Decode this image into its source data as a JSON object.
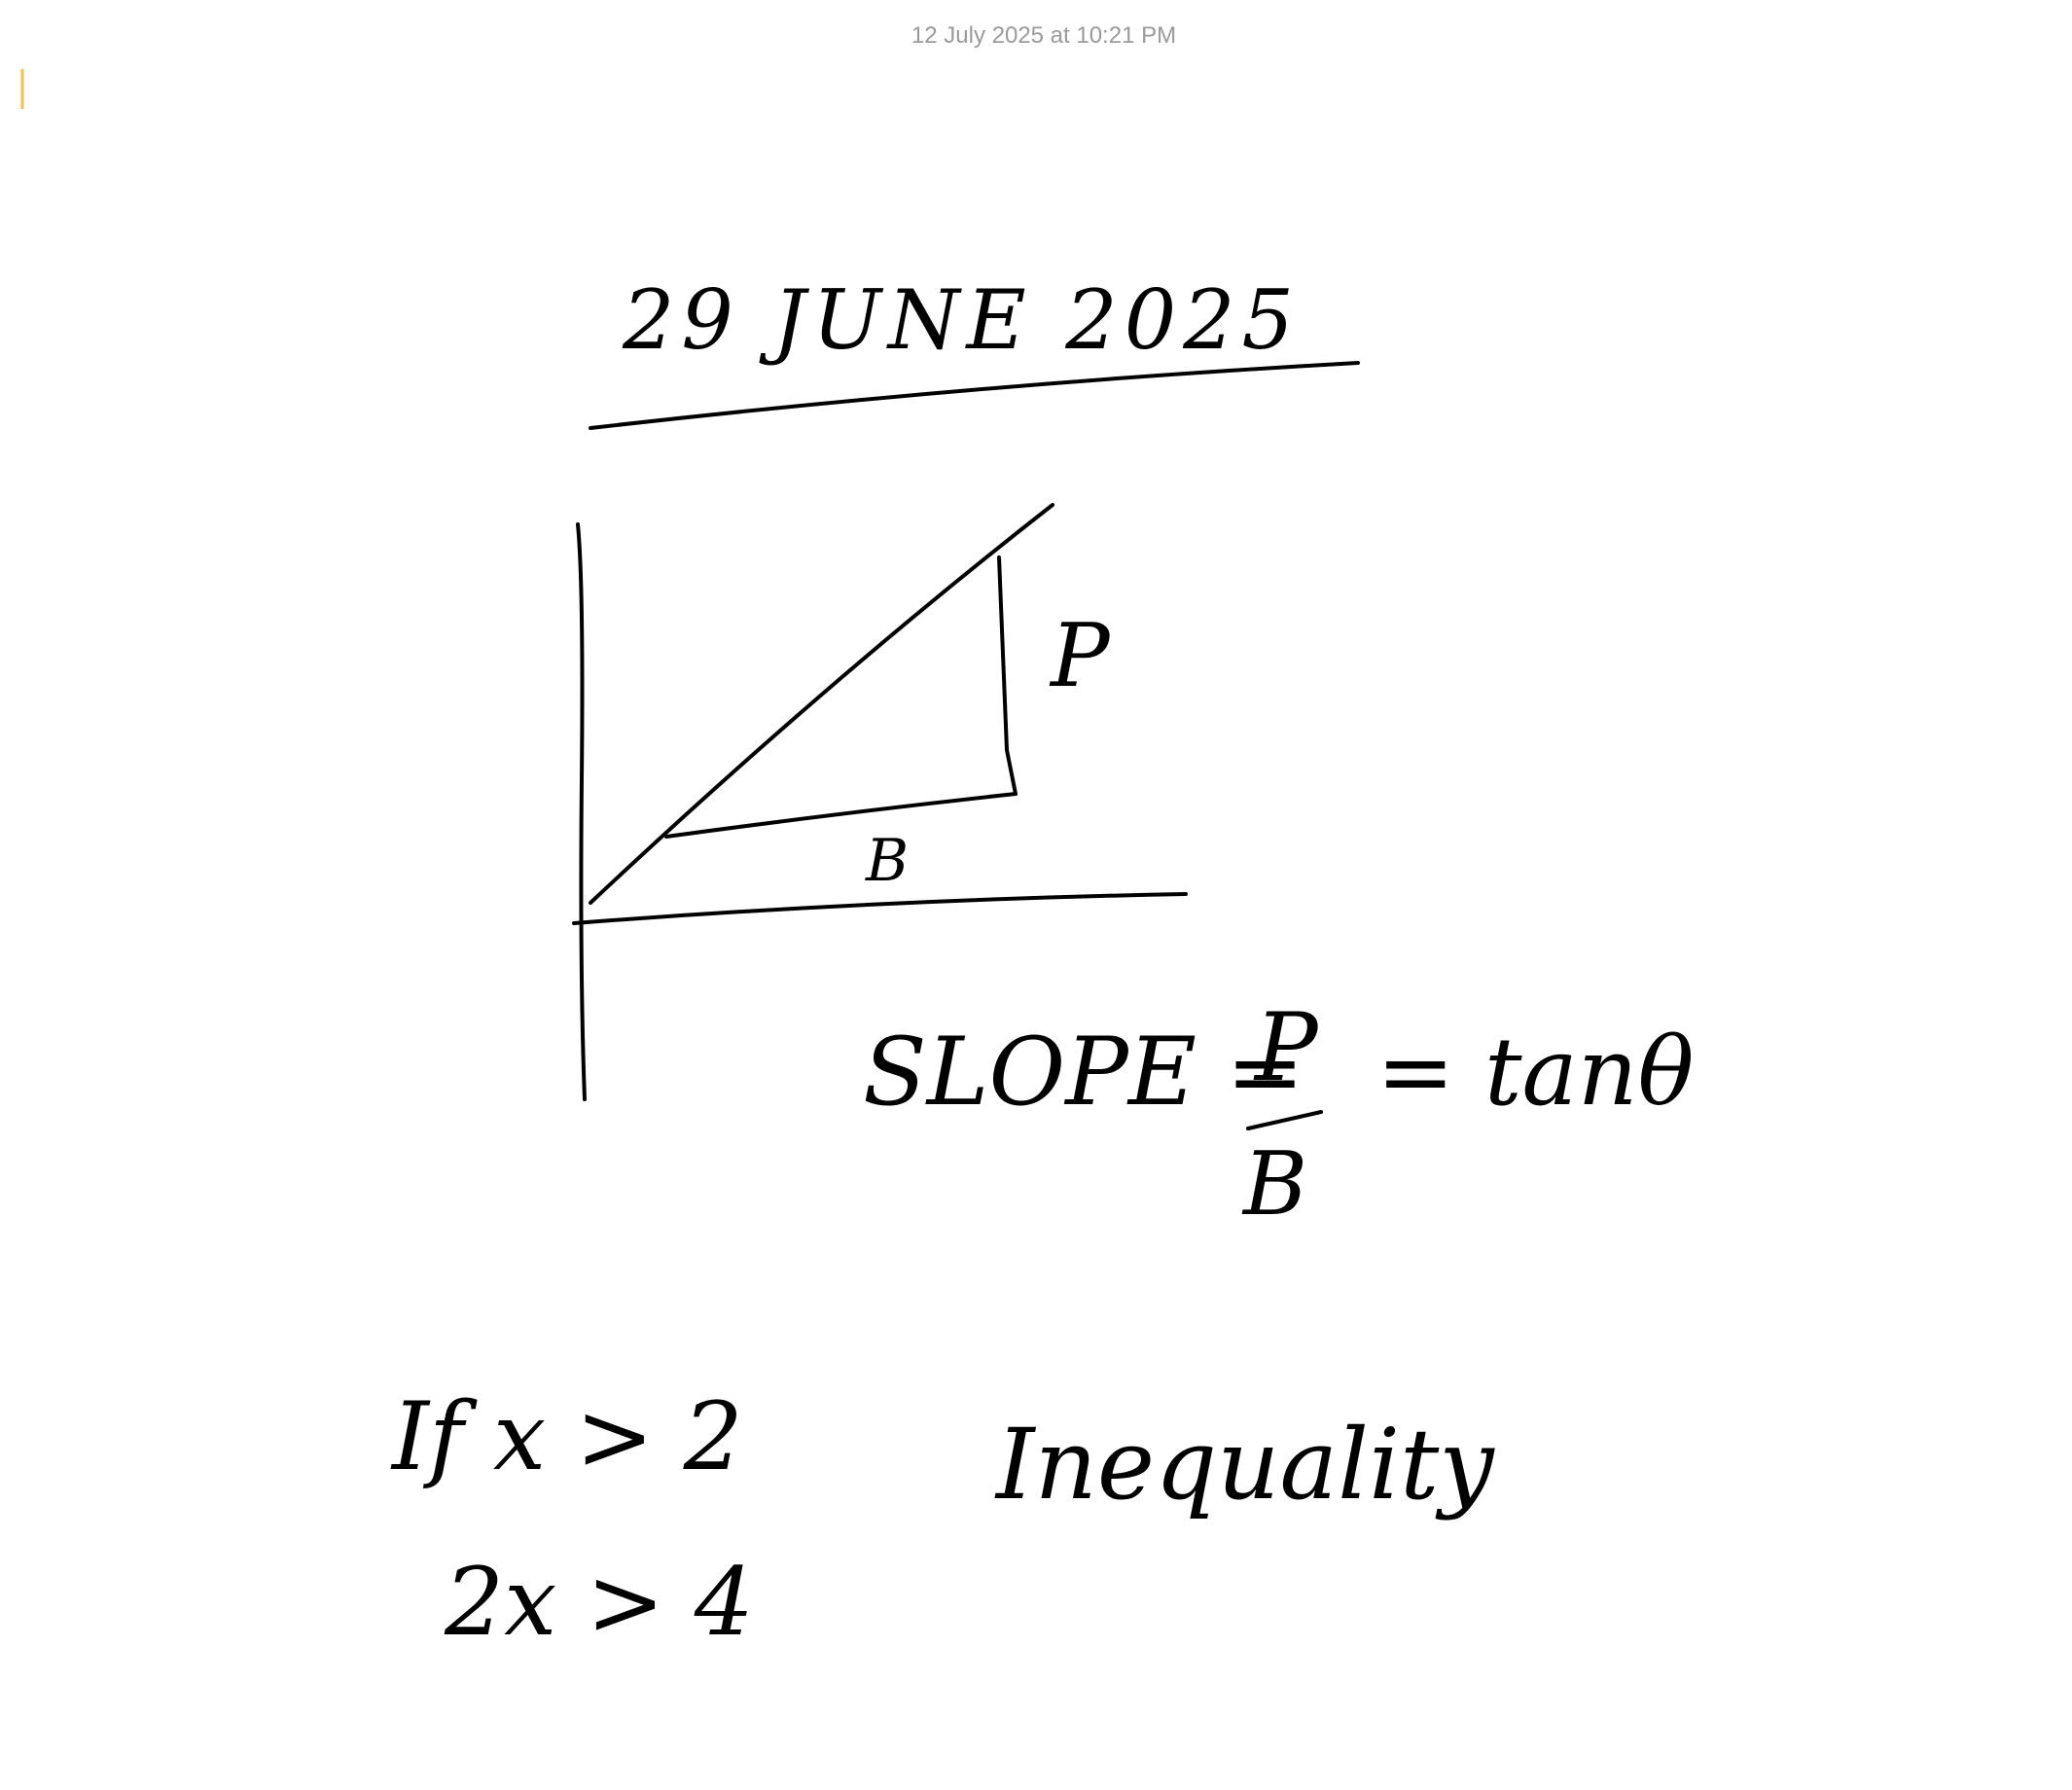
{
  "header": {
    "timestamp": "12 July 2025 at 10:21 PM"
  },
  "note": {
    "date": "29 JUNE 2025",
    "diagram": {
      "p_label": "P",
      "b_label": "B"
    },
    "formula": {
      "lhs": "SLOPE =",
      "numerator": "P",
      "denominator": "B",
      "rhs": "= tanθ"
    },
    "inequality": {
      "condition": "If x > 2",
      "result": "2x > 4",
      "label": "Inequality"
    }
  }
}
